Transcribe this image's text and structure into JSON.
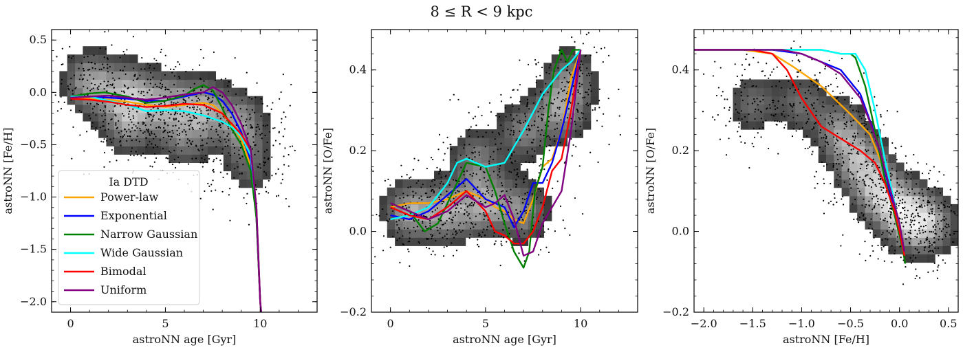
{
  "figure": {
    "suptitle": "8 ≤ R < 9 kpc"
  },
  "legend": {
    "title": "Ia DTD",
    "entries": [
      "Power-law",
      "Exponential",
      "Narrow Gaussian",
      "Wide Gaussian",
      "Bimodal",
      "Uniform"
    ]
  },
  "colors": {
    "Power-law": "#ffa500",
    "Exponential": "#0000ff",
    "Narrow Gaussian": "#008000",
    "Wide Gaussian": "#00ffff",
    "Bimodal": "#ff0000",
    "Uniform": "#800080",
    "scatter": "#000000",
    "hist_dark": "#101010",
    "hist_light": "#ffffff"
  },
  "chart_data": [
    {
      "type": "line",
      "xlabel": "astroNN age [Gyr]",
      "ylabel": "astroNN [Fe/H]",
      "xlim": [
        -1,
        13
      ],
      "ylim": [
        -2.1,
        0.6
      ],
      "xticks": [
        0,
        5,
        10
      ],
      "yticks": [
        -2.0,
        -1.5,
        -1.0,
        -0.5,
        0.0,
        0.5
      ],
      "xtick_labels": [
        "0",
        "5",
        "10"
      ],
      "ytick_labels": [
        "−2.0",
        "−1.5",
        "−1.0",
        "−0.5",
        "0.0",
        "0.5"
      ],
      "background": "2D density histogram (greyscale) with outlier scatter points",
      "legend_placement": "lower-left",
      "series": [
        {
          "name": "Power-law",
          "x": [
            0,
            1,
            2,
            3,
            4,
            5,
            6,
            7,
            7.5,
            8,
            8.5,
            9,
            9.5,
            9.8,
            10,
            10.05
          ],
          "y": [
            -0.05,
            -0.06,
            -0.07,
            -0.09,
            -0.12,
            -0.14,
            -0.12,
            -0.1,
            -0.12,
            -0.2,
            -0.32,
            -0.45,
            -0.7,
            -1.2,
            -2.0,
            -2.1
          ]
        },
        {
          "name": "Exponential",
          "x": [
            0,
            1,
            2,
            3,
            4,
            5,
            6,
            7,
            7.5,
            8,
            8.5,
            9,
            9.5,
            9.8,
            10,
            10.05
          ],
          "y": [
            -0.05,
            -0.04,
            -0.05,
            -0.06,
            -0.08,
            -0.08,
            -0.04,
            0.0,
            -0.02,
            -0.08,
            -0.2,
            -0.38,
            -0.65,
            -1.2,
            -2.0,
            -2.1
          ]
        },
        {
          "name": "Narrow Gaussian",
          "x": [
            0,
            1,
            1.8,
            3,
            4,
            5,
            6,
            6.5,
            7,
            7.5,
            8,
            8.5,
            9,
            9.5,
            9.8,
            10,
            10.05
          ],
          "y": [
            -0.04,
            -0.01,
            0.0,
            -0.04,
            -0.1,
            -0.08,
            -0.03,
            0.03,
            0.07,
            0.02,
            -0.15,
            -0.35,
            -0.5,
            -0.75,
            -1.2,
            -2.0,
            -2.1
          ]
        },
        {
          "name": "Wide Gaussian",
          "x": [
            0,
            1,
            2,
            3,
            4,
            5,
            6,
            7,
            8,
            8.5,
            9,
            9.5,
            9.8,
            10,
            10.05
          ],
          "y": [
            -0.04,
            -0.04,
            -0.08,
            -0.12,
            -0.18,
            -0.17,
            -0.18,
            -0.22,
            -0.28,
            -0.33,
            -0.42,
            -0.6,
            -1.1,
            -2.0,
            -2.1
          ]
        },
        {
          "name": "Bimodal",
          "x": [
            0,
            1,
            2,
            3,
            4,
            5,
            6,
            7,
            8,
            8.5,
            9,
            9.5,
            9.8,
            10,
            10.05
          ],
          "y": [
            -0.06,
            -0.07,
            -0.09,
            -0.12,
            -0.14,
            -0.13,
            -0.11,
            -0.12,
            -0.2,
            -0.3,
            -0.4,
            -0.55,
            -1.1,
            -2.0,
            -2.1
          ]
        },
        {
          "name": "Uniform",
          "x": [
            0,
            1,
            2,
            3,
            4,
            5,
            6,
            7,
            7.5,
            8,
            8.5,
            9,
            9.5,
            9.8,
            10,
            10.05
          ],
          "y": [
            -0.05,
            -0.04,
            -0.03,
            -0.05,
            -0.07,
            -0.05,
            -0.02,
            0.0,
            0.05,
            0.0,
            -0.12,
            -0.3,
            -0.55,
            -1.1,
            -2.0,
            -2.1
          ]
        }
      ]
    },
    {
      "type": "line",
      "xlabel": "astroNN age [Gyr]",
      "ylabel": "astroNN [O/Fe]",
      "xlim": [
        -1,
        13
      ],
      "ylim": [
        -0.2,
        0.5
      ],
      "xticks": [
        0,
        5,
        10
      ],
      "yticks": [
        -0.2,
        0.0,
        0.2,
        0.4
      ],
      "xtick_labels": [
        "0",
        "5",
        "10"
      ],
      "ytick_labels": [
        "−0.2",
        "0.0",
        "0.2",
        "0.4"
      ],
      "background": "2D density histogram (greyscale) with outlier scatter points",
      "series": [
        {
          "name": "Power-law",
          "x": [
            0,
            1,
            2,
            3,
            4,
            5,
            5.5,
            6,
            6.5,
            7,
            7.5,
            8,
            8.5,
            9,
            9.5,
            10
          ],
          "y": [
            0.06,
            0.07,
            0.07,
            0.08,
            0.1,
            0.08,
            0.06,
            0.05,
            0.03,
            0.02,
            0.08,
            0.16,
            0.18,
            0.25,
            0.38,
            0.45
          ]
        },
        {
          "name": "Exponential",
          "x": [
            0,
            1,
            2,
            3,
            4,
            5,
            6,
            6.5,
            7,
            7.5,
            8,
            8.5,
            9,
            9.5,
            10
          ],
          "y": [
            0.04,
            0.03,
            0.05,
            0.09,
            0.13,
            0.08,
            0.06,
            0.01,
            0.05,
            0.12,
            0.12,
            0.17,
            0.25,
            0.35,
            0.45
          ]
        },
        {
          "name": "Narrow Gaussian",
          "x": [
            0,
            1,
            1.8,
            2.5,
            3.5,
            4,
            5,
            5.5,
            6,
            6.5,
            7,
            7.3,
            7.6,
            8,
            8.3,
            8.6,
            9,
            9.3,
            9.6,
            10
          ],
          "y": [
            0.07,
            0.05,
            0.0,
            0.02,
            0.12,
            0.17,
            0.16,
            0.1,
            0.02,
            -0.05,
            -0.09,
            -0.05,
            0.1,
            0.16,
            0.3,
            0.4,
            0.45,
            0.42,
            0.45,
            0.45
          ]
        },
        {
          "name": "Wide Gaussian",
          "x": [
            0,
            1,
            2,
            3,
            3.5,
            4,
            5,
            6,
            7,
            8,
            9,
            9.5,
            10
          ],
          "y": [
            0.03,
            0.04,
            0.06,
            0.12,
            0.17,
            0.18,
            0.16,
            0.17,
            0.25,
            0.34,
            0.4,
            0.42,
            0.45
          ]
        },
        {
          "name": "Bimodal",
          "x": [
            0,
            1,
            2,
            3,
            4,
            5,
            5.5,
            6,
            6.5,
            7,
            7.5,
            8,
            8.5,
            9,
            9.5,
            10
          ],
          "y": [
            0.06,
            0.04,
            0.03,
            0.06,
            0.1,
            0.05,
            0.0,
            -0.01,
            -0.03,
            -0.03,
            0.0,
            0.06,
            0.15,
            0.18,
            0.3,
            0.45
          ]
        },
        {
          "name": "Uniform",
          "x": [
            0,
            1,
            2,
            3,
            4,
            5,
            5.5,
            6,
            6.5,
            7,
            7.5,
            8,
            8.5,
            9,
            9.5,
            10
          ],
          "y": [
            0.07,
            0.05,
            0.03,
            0.05,
            0.09,
            0.06,
            0.07,
            0.09,
            0.03,
            -0.06,
            -0.05,
            0.02,
            0.06,
            0.1,
            0.25,
            0.45
          ]
        }
      ]
    },
    {
      "type": "line",
      "xlabel": "astroNN [Fe/H]",
      "ylabel": "astroNN [O/Fe]",
      "xlim": [
        -2.1,
        0.6
      ],
      "ylim": [
        -0.2,
        0.5
      ],
      "xticks": [
        -2.0,
        -1.5,
        -1.0,
        -0.5,
        0.0,
        0.5
      ],
      "yticks": [
        -0.2,
        0.0,
        0.2,
        0.4
      ],
      "xtick_labels": [
        "−2.0",
        "−1.5",
        "−1.0",
        "−0.5",
        "0.0",
        "0.5"
      ],
      "ytick_labels": [
        "−0.2",
        "0.0",
        "0.2",
        "0.4"
      ],
      "background": "2D density histogram (greyscale) with outlier scatter points",
      "series": [
        {
          "name": "Power-law",
          "x": [
            -2.1,
            -1.6,
            -1.3,
            -1.1,
            -0.8,
            -0.5,
            -0.3,
            -0.15,
            -0.05,
            0.0,
            0.05
          ],
          "y": [
            0.45,
            0.45,
            0.44,
            0.41,
            0.36,
            0.29,
            0.24,
            0.15,
            0.05,
            0.0,
            -0.06
          ]
        },
        {
          "name": "Exponential",
          "x": [
            -2.1,
            -1.3,
            -1.0,
            -0.8,
            -0.6,
            -0.4,
            -0.25,
            -0.15,
            -0.05,
            0.0,
            0.05
          ],
          "y": [
            0.45,
            0.45,
            0.44,
            0.42,
            0.4,
            0.34,
            0.24,
            0.15,
            0.05,
            0.0,
            -0.05
          ]
        },
        {
          "name": "Narrow Gaussian",
          "x": [
            -2.1,
            -1.0,
            -0.8,
            -0.6,
            -0.5,
            -0.45,
            -0.35,
            -0.25,
            -0.15,
            -0.05,
            0.02,
            0.06
          ],
          "y": [
            0.45,
            0.45,
            0.45,
            0.44,
            0.44,
            0.43,
            0.36,
            0.25,
            0.13,
            0.04,
            -0.03,
            -0.08
          ]
        },
        {
          "name": "Wide Gaussian",
          "x": [
            -2.1,
            -1.1,
            -0.8,
            -0.6,
            -0.45,
            -0.35,
            -0.25,
            -0.15,
            -0.05,
            0.0,
            0.04
          ],
          "y": [
            0.45,
            0.45,
            0.45,
            0.44,
            0.44,
            0.4,
            0.3,
            0.18,
            0.07,
            0.01,
            -0.05
          ]
        },
        {
          "name": "Bimodal",
          "x": [
            -2.1,
            -1.5,
            -1.3,
            -1.15,
            -1.0,
            -0.8,
            -0.6,
            -0.4,
            -0.25,
            -0.15,
            -0.05,
            0.0,
            0.05
          ],
          "y": [
            0.45,
            0.45,
            0.44,
            0.4,
            0.33,
            0.26,
            0.23,
            0.2,
            0.17,
            0.12,
            0.05,
            0.0,
            -0.06
          ]
        },
        {
          "name": "Uniform",
          "x": [
            -2.1,
            -1.4,
            -1.2,
            -1.0,
            -0.8,
            -0.6,
            -0.4,
            -0.3,
            -0.2,
            -0.1,
            0.0,
            0.05
          ],
          "y": [
            0.45,
            0.45,
            0.45,
            0.44,
            0.42,
            0.39,
            0.33,
            0.27,
            0.2,
            0.11,
            0.02,
            -0.05
          ]
        }
      ]
    }
  ]
}
